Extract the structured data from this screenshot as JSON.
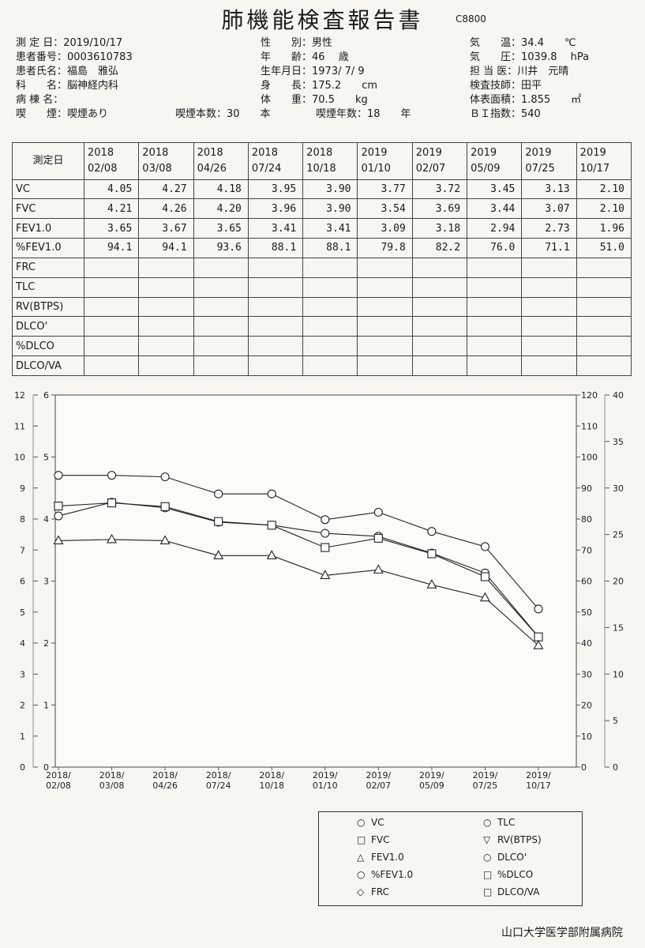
{
  "title": "肺機能検査報告書",
  "doc_code": "C8800",
  "header": {
    "measure_date_label": "測 定 日：",
    "measure_date": "2019/10/17",
    "patient_no_label": "患者番号：",
    "patient_no": "0003610783",
    "patient_name_label": "患者氏名：",
    "patient_name": "福島　雅弘",
    "department_label": "科　　名：",
    "department": "脳神経内科",
    "ward_label": "病 棟 名：",
    "ward": "",
    "smoking_label": "喫　　煙：",
    "smoking": "喫煙あり",
    "cigs_label": "喫煙本数：30　　本",
    "years_label": "喫煙年数：18　　年",
    "sex_label": "性　　別：",
    "sex": "男性",
    "age_label": "年　　齢：",
    "age": "46　 歳",
    "dob_label": "生年月日：",
    "dob": "1973/ 7/ 9",
    "height_label": "身　　長：",
    "height": "175.2　　cm",
    "weight_label": "体　　重：",
    "weight": "70.5　　kg",
    "temp_label": "気　　温：",
    "temp": "34.4　　℃",
    "pressure_label": "気　　圧：",
    "pressure": "1039.8　 hPa",
    "doctor_label": "担 当 医：",
    "doctor": "川井　元晴",
    "tech_label": "検査技師：",
    "tech": "田平",
    "bsa_label": "体表面積：",
    "bsa": "1.855　　㎡",
    "bi_label": "ＢＩ指数：",
    "bi": "540"
  },
  "table": {
    "date_header": "測定日",
    "dates": [
      [
        "2018",
        "02/08"
      ],
      [
        "2018",
        "03/08"
      ],
      [
        "2018",
        "04/26"
      ],
      [
        "2018",
        "07/24"
      ],
      [
        "2018",
        "10/18"
      ],
      [
        "2019",
        "01/10"
      ],
      [
        "2019",
        "02/07"
      ],
      [
        "2019",
        "05/09"
      ],
      [
        "2019",
        "07/25"
      ],
      [
        "2019",
        "10/17"
      ]
    ],
    "rows": [
      {
        "label": "VC",
        "values": [
          "4.05",
          "4.27",
          "4.18",
          "3.95",
          "3.90",
          "3.77",
          "3.72",
          "3.45",
          "3.13",
          "2.10"
        ]
      },
      {
        "label": "FVC",
        "values": [
          "4.21",
          "4.26",
          "4.20",
          "3.96",
          "3.90",
          "3.54",
          "3.69",
          "3.44",
          "3.07",
          "2.10"
        ]
      },
      {
        "label": "FEV1.0",
        "values": [
          "3.65",
          "3.67",
          "3.65",
          "3.41",
          "3.41",
          "3.09",
          "3.18",
          "2.94",
          "2.73",
          "1.96"
        ]
      },
      {
        "label": "%FEV1.0",
        "values": [
          "94.1",
          "94.1",
          "93.6",
          "88.1",
          "88.1",
          "79.8",
          "82.2",
          "76.0",
          "71.1",
          "51.0"
        ]
      },
      {
        "label": "FRC",
        "values": [
          "",
          "",
          "",
          "",
          "",
          "",
          "",
          "",
          "",
          ""
        ]
      },
      {
        "label": "TLC",
        "values": [
          "",
          "",
          "",
          "",
          "",
          "",
          "",
          "",
          "",
          ""
        ]
      },
      {
        "label": "RV(BTPS)",
        "values": [
          "",
          "",
          "",
          "",
          "",
          "",
          "",
          "",
          "",
          ""
        ]
      },
      {
        "label": "DLCO'",
        "values": [
          "",
          "",
          "",
          "",
          "",
          "",
          "",
          "",
          "",
          ""
        ]
      },
      {
        "label": "%DLCO",
        "values": [
          "",
          "",
          "",
          "",
          "",
          "",
          "",
          "",
          "",
          ""
        ]
      },
      {
        "label": "DLCO/VA",
        "values": [
          "",
          "",
          "",
          "",
          "",
          "",
          "",
          "",
          "",
          ""
        ]
      }
    ]
  },
  "chart_data": {
    "type": "line",
    "categories": [
      "2018/02/08",
      "2018/03/08",
      "2018/04/26",
      "2018/07/24",
      "2018/10/18",
      "2019/01/10",
      "2019/02/07",
      "2019/05/09",
      "2019/07/25",
      "2019/10/17"
    ],
    "x_tick_labels": [
      [
        "2018/",
        "02/08"
      ],
      [
        "2018/",
        "03/08"
      ],
      [
        "2018/",
        "04/26"
      ],
      [
        "2018/",
        "07/24"
      ],
      [
        "2018/",
        "10/18"
      ],
      [
        "2019/",
        "01/10"
      ],
      [
        "2019/",
        "02/07"
      ],
      [
        "2019/",
        "05/09"
      ],
      [
        "2019/",
        "07/25"
      ],
      [
        "2019/",
        "10/17"
      ]
    ],
    "axes": {
      "left_outer": {
        "ticks": [
          "0",
          "1",
          "2",
          "3",
          "4",
          "5",
          "6",
          "7",
          "8",
          "9",
          "10",
          "11",
          "12"
        ],
        "ylim": [
          0,
          12
        ]
      },
      "left_inner": {
        "ticks": [
          "0",
          "1",
          "2",
          "3",
          "4",
          "5",
          "6"
        ],
        "ylim": [
          0,
          6
        ]
      },
      "right_inner": {
        "ticks": [
          "0",
          "10",
          "20",
          "30",
          "40",
          "50",
          "60",
          "70",
          "80",
          "90",
          "100",
          "110",
          "120"
        ],
        "ylim": [
          0,
          120
        ]
      },
      "right_outer": {
        "ticks": [
          "0",
          "5",
          "10",
          "15",
          "20",
          "25",
          "30",
          "35",
          "40"
        ],
        "ylim": [
          0,
          40
        ]
      }
    },
    "series": [
      {
        "name": "VC",
        "axis": "left_inner",
        "marker": "circle",
        "values": [
          4.05,
          4.27,
          4.18,
          3.95,
          3.9,
          3.77,
          3.72,
          3.45,
          3.13,
          2.1
        ]
      },
      {
        "name": "FVC",
        "axis": "left_inner",
        "marker": "square",
        "values": [
          4.21,
          4.26,
          4.2,
          3.96,
          3.9,
          3.54,
          3.69,
          3.44,
          3.07,
          2.1
        ]
      },
      {
        "name": "FEV1.0",
        "axis": "left_inner",
        "marker": "triangle",
        "values": [
          3.65,
          3.67,
          3.65,
          3.41,
          3.41,
          3.09,
          3.18,
          2.94,
          2.73,
          1.96
        ]
      },
      {
        "name": "%FEV1.0",
        "axis": "right_inner",
        "marker": "circle",
        "values": [
          94.1,
          94.1,
          93.6,
          88.1,
          88.1,
          79.8,
          82.2,
          76.0,
          71.1,
          51.0
        ]
      }
    ]
  },
  "legend": {
    "left": [
      {
        "sym": "○",
        "label": "VC"
      },
      {
        "sym": "□",
        "label": "FVC"
      },
      {
        "sym": "△",
        "label": "FEV1.0"
      },
      {
        "sym": "○",
        "label": "%FEV1.0"
      },
      {
        "sym": "◇",
        "label": "FRC"
      }
    ],
    "right": [
      {
        "sym": "○",
        "label": "TLC"
      },
      {
        "sym": "▽",
        "label": "RV(BTPS)"
      },
      {
        "sym": "○",
        "label": "DLCO'"
      },
      {
        "sym": "□",
        "label": "%DLCO"
      },
      {
        "sym": "□",
        "label": "DLCO/VA"
      }
    ]
  },
  "footer": "山口大学医学部附属病院"
}
